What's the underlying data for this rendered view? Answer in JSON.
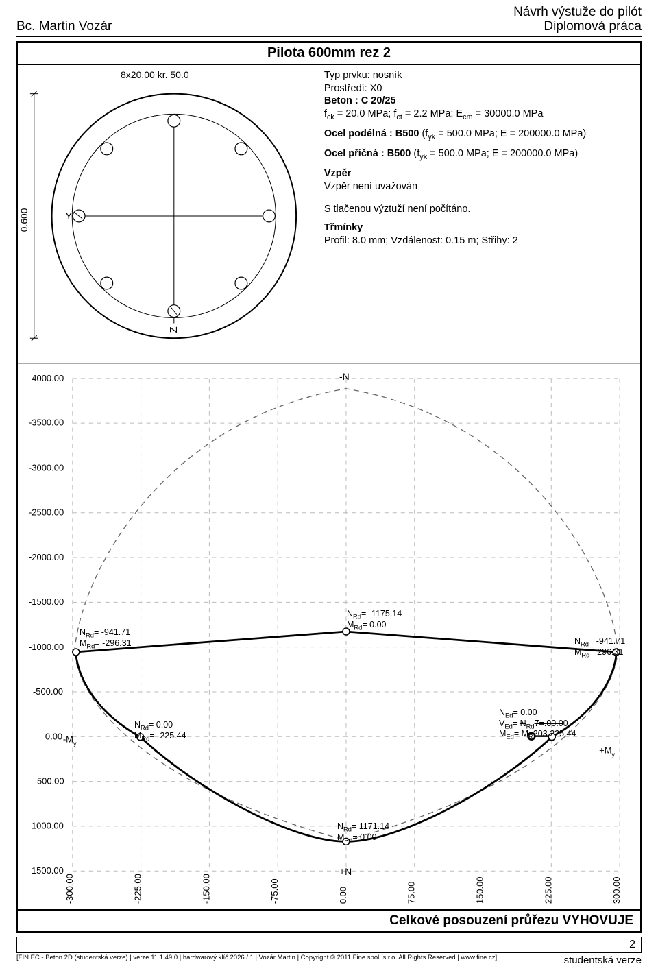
{
  "header": {
    "author": "Bc. Martin Vozár",
    "title_line1": "Návrh výstuže do pilót",
    "title_line2": "Diplomová práca"
  },
  "section": {
    "title": "Pilota 600mm rez 2",
    "rebar_label": "8x20.00 kr. 50.0",
    "diameter_label": "0.600",
    "info": {
      "typ_prvku": "Typ prvku: nosník",
      "prostredi": "Prostředí: X0",
      "beton_label": "Beton : C 20/25",
      "concrete_props": "f<sub>ck</sub> = 20.0 MPa; f<sub>ct</sub> = 2.2 MPa; E<sub>cm</sub> = 30000.0 MPa",
      "ocel_podelna_label": "Ocel podélná : B500",
      "ocel_podelna_props": " (f<sub>yk</sub> = 500.0 MPa; E = 200000.0 MPa)",
      "ocel_pricna_label": "Ocel příčná : B500",
      "ocel_pricna_props": " (f<sub>yk</sub> = 500.0 MPa; E = 200000.0 MPa)",
      "vzper_label": "Vzpěr",
      "vzper_text": "Vzpěr není uvažován",
      "tlacena_text": "S tlačenou výztuží není počítáno.",
      "trminky_label": "Třmínky",
      "trminky_text": "Profil: 8.0 mm; Vzdálenost: 0.15 m; Střihy: 2"
    }
  },
  "chart": {
    "y_ticks": [
      "-4000.00",
      "-3500.00",
      "-3000.00",
      "-2500.00",
      "-2000.00",
      "-1500.00",
      "-1000.00",
      "-500.00",
      "0.00",
      "500.00",
      "1000.00",
      "1500.00"
    ],
    "x_ticks": [
      "-300.00",
      "-225.00",
      "-150.00",
      "-75.00",
      "0.00",
      "75.00",
      "150.00",
      "225.00",
      "300.00"
    ],
    "y_label_top": "-N",
    "y_label_bottom": "+N",
    "x_label_left": "-M",
    "x_label_right": "+M",
    "annotations": {
      "a_left": "N<sub>Rd</sub>= -941.71<br>M<sub>Rd</sub>= -296.31",
      "a_top_center": "N<sub>Rd</sub>= -1175.14<br>M<sub>Rd</sub>= 0.00",
      "a_right": "N<sub>Rd</sub>= -941.71<br>M<sub>Rd</sub>= 296.31",
      "a_zero_left": "N<sub>Rd</sub>= 0.00<br>M<sub>Rd</sub>= -225.44",
      "a_zero_right": "N<sub>Ed</sub>= 0.00<br>V<sub>Ed</sub>= <s>N<sub>Rd</sub>7=.<b>0</b>0.0</s>0<br>M<sub>Ed</sub>= <s>M<sub>R</sub></s>203.<s>22</s>5.44",
      "a_bottom": "N<sub>Rd</sub>= 1171.14<br>M<sub>Rd</sub>= 0.00"
    },
    "colors": {
      "grid": "#bbbbbb",
      "envelope_dashed": "#666666",
      "curve": "#000000",
      "marker": "#ffffff"
    }
  },
  "footer": {
    "result": "Celkové posouzení průřezu VYHOVUJE",
    "page_no": "2",
    "fineprint": "[FIN EC - Beton 2D (studentská verze) | verze 11.1.49.0 | hardwarový klíč 2026 / 1 | Vozár Martin | Copyright © 2011 Fine spol. s r.o. All Rights Reserved | www.fine.cz]",
    "fineprint_right": "studentská verze"
  }
}
